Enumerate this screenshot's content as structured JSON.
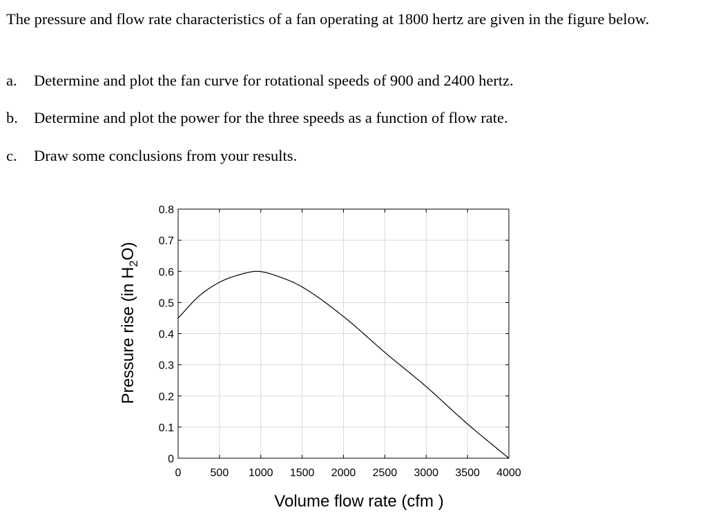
{
  "problem": {
    "intro": "The pressure and flow rate characteristics of a fan operating at 1800 hertz are given in the figure below.",
    "items": [
      {
        "marker": "a.",
        "text": "Determine and plot the fan curve for rotational speeds of 900 and 2400 hertz."
      },
      {
        "marker": "b.",
        "text": "Determine and plot the power for the three speeds as a function of flow rate."
      },
      {
        "marker": "c.",
        "text": "Draw some conclusions from your results."
      }
    ]
  },
  "chart_data": {
    "type": "line",
    "xlabel": "Volume flow rate (cfm )",
    "ylabel_prefix": "Pressure rise (in H",
    "ylabel_sub": "2",
    "ylabel_suffix": "O)",
    "xlim": [
      0,
      4000
    ],
    "ylim": [
      0,
      0.8
    ],
    "x_ticks": [
      0,
      500,
      1000,
      1500,
      2000,
      2500,
      3000,
      3500,
      4000
    ],
    "y_ticks": [
      0,
      0.1,
      0.2,
      0.3,
      0.4,
      0.5,
      0.6,
      0.7,
      0.8
    ],
    "grid": true,
    "colors": {
      "line": "#000000",
      "grid": "#d9d9d9",
      "frame": "#000000"
    },
    "series": [
      {
        "x": [
          0,
          250,
          500,
          750,
          950,
          1250,
          1500,
          2000,
          2500,
          3000,
          3500,
          4000
        ],
        "y": [
          0.45,
          0.52,
          0.565,
          0.59,
          0.6,
          0.58,
          0.55,
          0.455,
          0.34,
          0.23,
          0.11,
          0.0
        ]
      }
    ]
  }
}
